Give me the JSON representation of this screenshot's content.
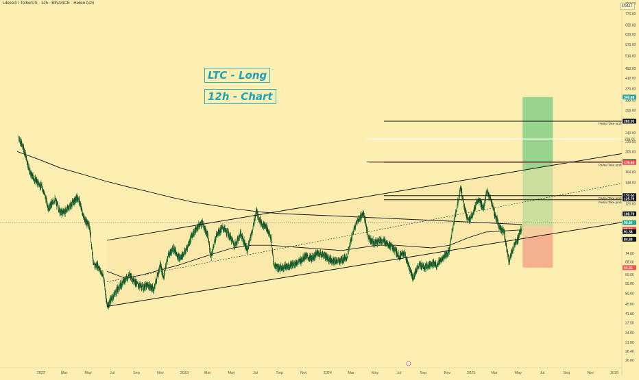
{
  "symbol_title": "Litecoin / TetherUS · 12h · BINANCE · Heikin Ashi",
  "annotations": {
    "line1": "LTC - Long",
    "line2": "12h - Chart"
  },
  "currency_button": "USDT",
  "colors": {
    "background": "#fdefb2",
    "candle_up": "#1f7a3a",
    "candle_down": "#0f3d1d",
    "trendline": "#111111",
    "profit_zone": "#8ed08a",
    "loss_zone": "#f4a98c",
    "annotation": "#2bb3c9",
    "badge_dark": "#131722",
    "badge_teal": "#26a69a",
    "badge_red": "#ef5350"
  },
  "chart_data": {
    "type": "candlestick",
    "y_scale": "log",
    "ylim": [
      24.5,
      880
    ],
    "x_range": [
      "2021-11-01",
      "2026-03-01"
    ],
    "x_tick_labels": [
      "2022",
      "Mar",
      "May",
      "Jul",
      "Sep",
      "Nov",
      "2023",
      "Mar",
      "May",
      "Jul",
      "Sep",
      "Nov",
      "2024",
      "Mar",
      "May",
      "Jul",
      "Sep",
      "Nov",
      "2025",
      "Mar",
      "May",
      "Jul",
      "Sep",
      "Nov",
      "2026"
    ],
    "y_tick_labels": [
      "850.00",
      "770.00",
      "690.00",
      "630.00",
      "570.00",
      "510.00",
      "450.00",
      "410.00",
      "370.00",
      "330.00",
      "300.00",
      "240.00",
      "220.00",
      "200.00",
      "164.00",
      "148.00",
      "120.00",
      "110.00",
      "74.00",
      "68.00",
      "60.00",
      "55.00",
      "50.00",
      "45.00",
      "41.00",
      "37.50",
      "34.00",
      "31.00",
      "28.40",
      "26.00"
    ],
    "price_series": [
      {
        "x": "2021-11-05",
        "y": 230
      },
      {
        "x": "2021-11-20",
        "y": 200
      },
      {
        "x": "2021-12-05",
        "y": 160
      },
      {
        "x": "2021-12-20",
        "y": 150
      },
      {
        "x": "2022-01-05",
        "y": 140
      },
      {
        "x": "2022-01-20",
        "y": 115
      },
      {
        "x": "2022-02-05",
        "y": 125
      },
      {
        "x": "2022-02-20",
        "y": 110
      },
      {
        "x": "2022-03-05",
        "y": 112
      },
      {
        "x": "2022-03-20",
        "y": 120
      },
      {
        "x": "2022-04-05",
        "y": 128
      },
      {
        "x": "2022-04-20",
        "y": 105
      },
      {
        "x": "2022-05-05",
        "y": 95
      },
      {
        "x": "2022-05-15",
        "y": 65
      },
      {
        "x": "2022-05-25",
        "y": 66
      },
      {
        "x": "2022-06-10",
        "y": 58
      },
      {
        "x": "2022-06-18",
        "y": 44
      },
      {
        "x": "2022-07-01",
        "y": 48
      },
      {
        "x": "2022-07-15",
        "y": 52
      },
      {
        "x": "2022-08-01",
        "y": 57
      },
      {
        "x": "2022-08-15",
        "y": 60
      },
      {
        "x": "2022-09-01",
        "y": 55
      },
      {
        "x": "2022-09-15",
        "y": 53
      },
      {
        "x": "2022-10-01",
        "y": 54
      },
      {
        "x": "2022-10-15",
        "y": 52
      },
      {
        "x": "2022-11-01",
        "y": 66
      },
      {
        "x": "2022-11-09",
        "y": 58
      },
      {
        "x": "2022-11-20",
        "y": 72
      },
      {
        "x": "2022-12-05",
        "y": 78
      },
      {
        "x": "2022-12-20",
        "y": 70
      },
      {
        "x": "2023-01-05",
        "y": 76
      },
      {
        "x": "2023-01-20",
        "y": 88
      },
      {
        "x": "2023-02-05",
        "y": 96
      },
      {
        "x": "2023-02-15",
        "y": 100
      },
      {
        "x": "2023-03-01",
        "y": 88
      },
      {
        "x": "2023-03-10",
        "y": 72
      },
      {
        "x": "2023-03-25",
        "y": 90
      },
      {
        "x": "2023-04-10",
        "y": 95
      },
      {
        "x": "2023-04-25",
        "y": 88
      },
      {
        "x": "2023-05-10",
        "y": 80
      },
      {
        "x": "2023-05-25",
        "y": 90
      },
      {
        "x": "2023-06-10",
        "y": 76
      },
      {
        "x": "2023-06-25",
        "y": 95
      },
      {
        "x": "2023-07-03",
        "y": 112
      },
      {
        "x": "2023-07-15",
        "y": 100
      },
      {
        "x": "2023-07-30",
        "y": 95
      },
      {
        "x": "2023-08-10",
        "y": 85
      },
      {
        "x": "2023-08-17",
        "y": 66
      },
      {
        "x": "2023-09-01",
        "y": 64
      },
      {
        "x": "2023-09-15",
        "y": 65
      },
      {
        "x": "2023-10-01",
        "y": 66
      },
      {
        "x": "2023-10-20",
        "y": 68
      },
      {
        "x": "2023-11-05",
        "y": 72
      },
      {
        "x": "2023-11-20",
        "y": 70
      },
      {
        "x": "2023-12-05",
        "y": 74
      },
      {
        "x": "2023-12-20",
        "y": 73
      },
      {
        "x": "2024-01-05",
        "y": 70
      },
      {
        "x": "2024-01-20",
        "y": 68
      },
      {
        "x": "2024-02-05",
        "y": 69
      },
      {
        "x": "2024-02-20",
        "y": 72
      },
      {
        "x": "2024-03-05",
        "y": 90
      },
      {
        "x": "2024-03-15",
        "y": 100
      },
      {
        "x": "2024-04-01",
        "y": 110
      },
      {
        "x": "2024-04-15",
        "y": 85
      },
      {
        "x": "2024-05-01",
        "y": 82
      },
      {
        "x": "2024-05-15",
        "y": 84
      },
      {
        "x": "2024-06-01",
        "y": 82
      },
      {
        "x": "2024-06-15",
        "y": 78
      },
      {
        "x": "2024-07-01",
        "y": 72
      },
      {
        "x": "2024-07-15",
        "y": 74
      },
      {
        "x": "2024-08-05",
        "y": 58
      },
      {
        "x": "2024-08-20",
        "y": 66
      },
      {
        "x": "2024-09-05",
        "y": 64
      },
      {
        "x": "2024-09-20",
        "y": 67
      },
      {
        "x": "2024-10-05",
        "y": 66
      },
      {
        "x": "2024-10-20",
        "y": 70
      },
      {
        "x": "2024-11-05",
        "y": 75
      },
      {
        "x": "2024-11-15",
        "y": 95
      },
      {
        "x": "2024-11-25",
        "y": 115
      },
      {
        "x": "2024-12-05",
        "y": 140
      },
      {
        "x": "2024-12-15",
        "y": 115
      },
      {
        "x": "2024-12-25",
        "y": 100
      },
      {
        "x": "2025-01-05",
        "y": 110
      },
      {
        "x": "2025-01-20",
        "y": 125
      },
      {
        "x": "2025-02-01",
        "y": 115
      },
      {
        "x": "2025-02-10",
        "y": 135
      },
      {
        "x": "2025-02-20",
        "y": 125
      },
      {
        "x": "2025-03-01",
        "y": 110
      },
      {
        "x": "2025-03-15",
        "y": 95
      },
      {
        "x": "2025-03-25",
        "y": 92
      },
      {
        "x": "2025-04-07",
        "y": 68
      },
      {
        "x": "2025-04-20",
        "y": 80
      },
      {
        "x": "2025-05-01",
        "y": 86
      },
      {
        "x": "2025-05-10",
        "y": 96
      }
    ],
    "trendlines": [
      {
        "name": "channel-upper",
        "from": {
          "x": "2022-06-18",
          "y": 84
        },
        "to": {
          "x": "2026-02-20",
          "y": 200
        }
      },
      {
        "name": "channel-lower",
        "from": {
          "x": "2022-06-18",
          "y": 44
        },
        "to": {
          "x": "2026-02-20",
          "y": 102
        }
      },
      {
        "name": "mid-dashed",
        "from": {
          "x": "2022-06-18",
          "y": 56
        },
        "to": {
          "x": "2026-02-20",
          "y": 150
        }
      }
    ],
    "position": {
      "type": "long",
      "entry": 96.56,
      "target": 340.68,
      "stop": 64.31,
      "start": "2025-05-12",
      "end": "2025-07-28"
    },
    "take_profit_levels": [
      {
        "label": "Partial Take profit",
        "price": 269.05
      },
      {
        "label": "Partial Take profit",
        "price": 179.63
      },
      {
        "label": "Partial Take profit",
        "price": 129.9
      },
      {
        "label": "Partial Take profit",
        "price": 124.81
      }
    ],
    "horizontal_levels": [
      {
        "price": 226.01,
        "color": "#ffffff"
      },
      {
        "price": 181.02,
        "color": "#131722"
      }
    ],
    "price_badges": [
      {
        "value": "340.68",
        "bg": "#26a69a"
      },
      {
        "value": "269.05",
        "bg": "#131722"
      },
      {
        "value": "181.02",
        "bg": "#131722"
      },
      {
        "value": "179.63",
        "bg": "#ef5350"
      },
      {
        "value": "129.90",
        "bg": "#131722"
      },
      {
        "value": "125.79",
        "bg": "#131722"
      },
      {
        "value": "108.79",
        "bg": "#131722"
      },
      {
        "value": "99.84",
        "bg": "#26a69a"
      },
      {
        "value": "93.56",
        "bg": "#ef5350"
      },
      {
        "value": "91.38",
        "bg": "#131722"
      },
      {
        "value": "84.89",
        "bg": "#131722"
      },
      {
        "value": "64.31",
        "bg": "#ef5350"
      }
    ],
    "plain_price_labels": [
      "226.01",
      "124.81"
    ]
  }
}
